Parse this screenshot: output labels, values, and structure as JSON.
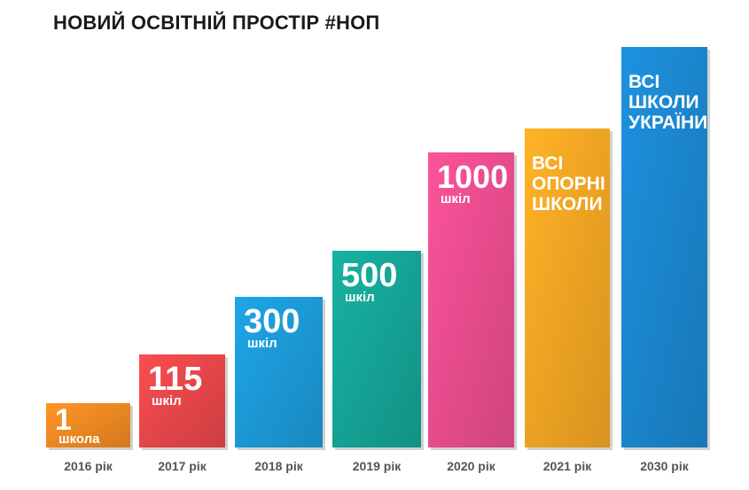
{
  "title": "НОВИЙ ОСВІТНІЙ ПРОСТІР #НОП",
  "chart_data": {
    "type": "bar",
    "title": "НОВИЙ ОСВІТНІЙ ПРОСТІР #НОП",
    "categories": [
      "2016 рік",
      "2017 рік",
      "2018 рік",
      "2019 рік",
      "2020 рік",
      "2021 рік",
      "2030 рік"
    ],
    "bars": [
      {
        "category": "2016 рік",
        "value": "1",
        "unit": "школа",
        "color": "#f08a22",
        "label_style": "number"
      },
      {
        "category": "2017 рік",
        "value": "115",
        "unit": "шкіл",
        "color": "#e8474a",
        "label_style": "number"
      },
      {
        "category": "2018 рік",
        "value": "300",
        "unit": "шкіл",
        "color": "#1c9ad8",
        "label_style": "number"
      },
      {
        "category": "2019 рік",
        "value": "500",
        "unit": "шкіл",
        "color": "#15a597",
        "label_style": "number"
      },
      {
        "category": "2020 рік",
        "value": "1000",
        "unit": "шкіл",
        "color": "#ea4d8f",
        "label_style": "number"
      },
      {
        "category": "2021 рік",
        "text_lines": [
          "ВСІ",
          "ОПОРНІ",
          "ШКОЛИ"
        ],
        "color": "#f5a623",
        "label_style": "text"
      },
      {
        "category": "2030 рік",
        "text_lines": [
          "ВСІ",
          "ШКОЛИ",
          "УКРАЇНИ"
        ],
        "color": "#1b87cf",
        "label_style": "text"
      }
    ],
    "grid": false,
    "legend": "none"
  }
}
